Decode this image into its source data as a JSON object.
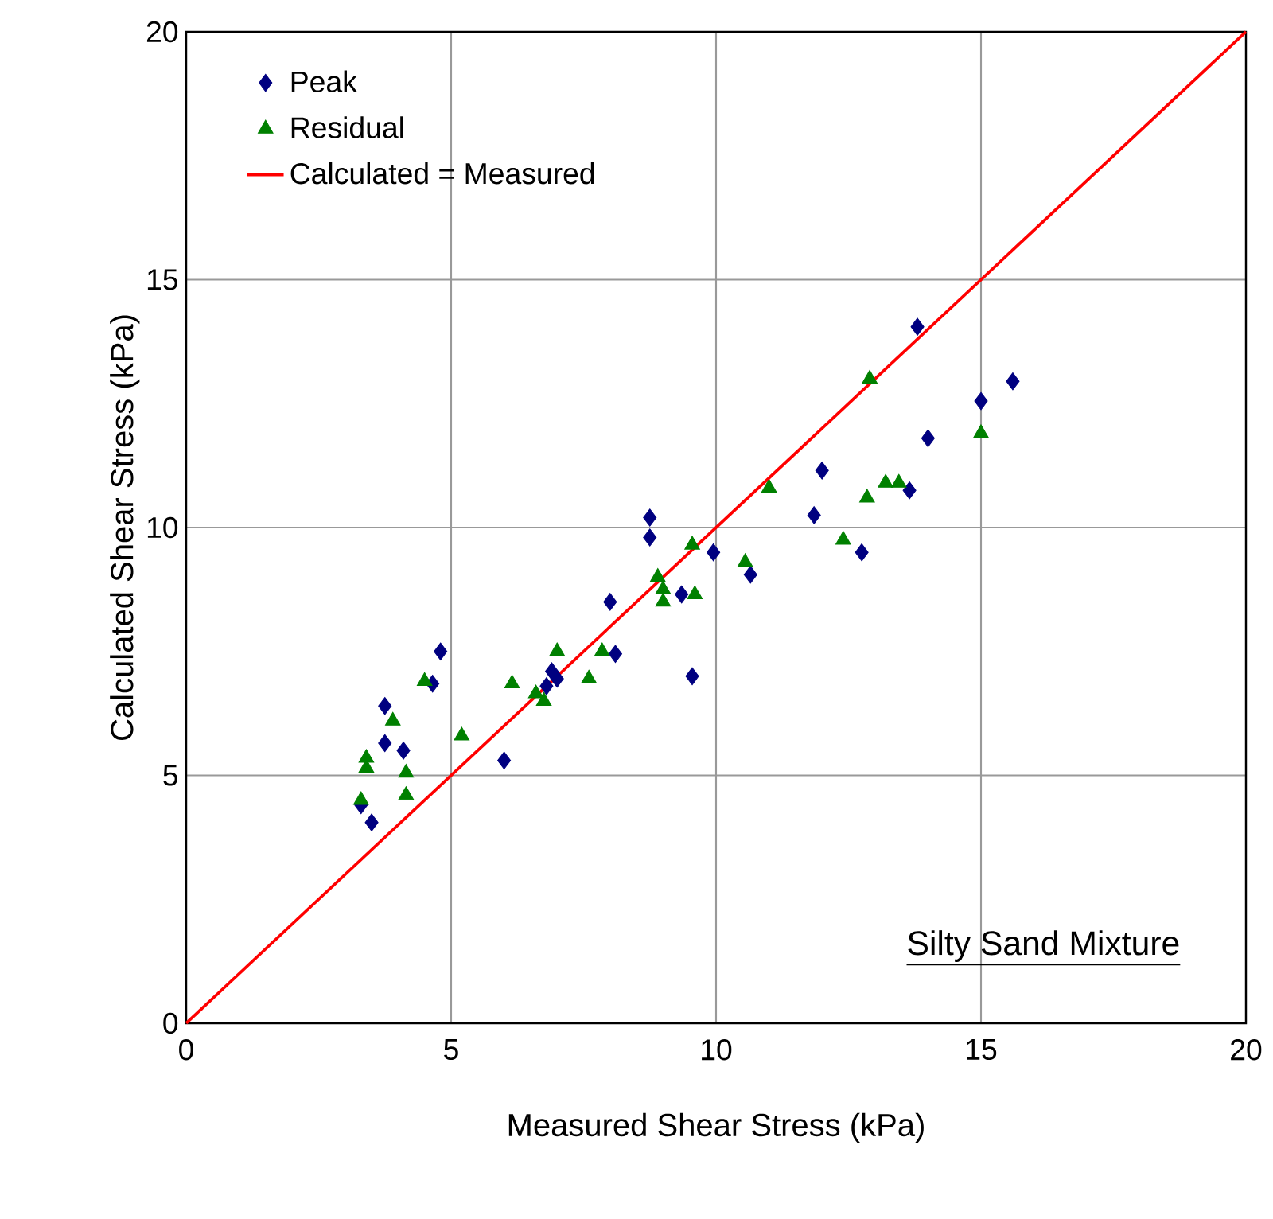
{
  "chart_data": {
    "type": "scatter",
    "xlabel": "Measured Shear Stress (kPa)",
    "ylabel": "Calculated Shear Stress (kPa)",
    "xlim": [
      0,
      20
    ],
    "ylim": [
      0,
      20
    ],
    "xticks": [
      0,
      5,
      10,
      15,
      20
    ],
    "yticks": [
      0,
      5,
      10,
      15,
      20
    ],
    "grid": true,
    "legend": "top left",
    "annotations": [
      "Silty Sand Mixture"
    ],
    "series": [
      {
        "name": "Peak",
        "marker": "diamond",
        "color": "#000080",
        "x": [
          3.3,
          3.5,
          3.75,
          3.75,
          4.1,
          4.65,
          4.8,
          6.0,
          6.8,
          6.9,
          7.0,
          8.0,
          8.1,
          8.75,
          8.75,
          9.35,
          9.55,
          9.95,
          10.65,
          11.85,
          12.0,
          12.75,
          13.65,
          13.8,
          14.0,
          15.0,
          15.6
        ],
        "values": [
          4.4,
          4.05,
          6.4,
          5.65,
          5.5,
          6.85,
          7.5,
          5.3,
          6.8,
          7.1,
          6.95,
          8.5,
          7.45,
          10.2,
          9.8,
          8.65,
          7.0,
          9.5,
          9.05,
          10.25,
          11.15,
          9.5,
          10.75,
          14.05,
          11.8,
          12.55,
          12.95
        ]
      },
      {
        "name": "Residual",
        "marker": "triangle",
        "color": "#008000",
        "x": [
          3.3,
          3.4,
          3.4,
          3.9,
          4.15,
          4.15,
          4.5,
          5.2,
          6.15,
          6.6,
          6.75,
          7.0,
          7.6,
          7.85,
          8.9,
          9.0,
          9.0,
          9.55,
          9.6,
          10.55,
          11.0,
          12.4,
          12.85,
          12.9,
          13.2,
          13.45,
          15.0
        ],
        "values": [
          4.5,
          5.35,
          5.15,
          6.1,
          5.05,
          4.6,
          6.9,
          5.8,
          6.85,
          6.65,
          6.5,
          7.5,
          6.95,
          7.5,
          9.0,
          8.75,
          8.5,
          9.65,
          8.65,
          9.3,
          10.8,
          9.75,
          10.6,
          13.0,
          10.9,
          10.9,
          11.9
        ]
      },
      {
        "name": "Calculated = Measured",
        "type": "line",
        "marker": "none",
        "line_style": "solid",
        "color": "#ff0000",
        "x": [
          0,
          20
        ],
        "values": [
          0,
          20
        ]
      }
    ]
  }
}
